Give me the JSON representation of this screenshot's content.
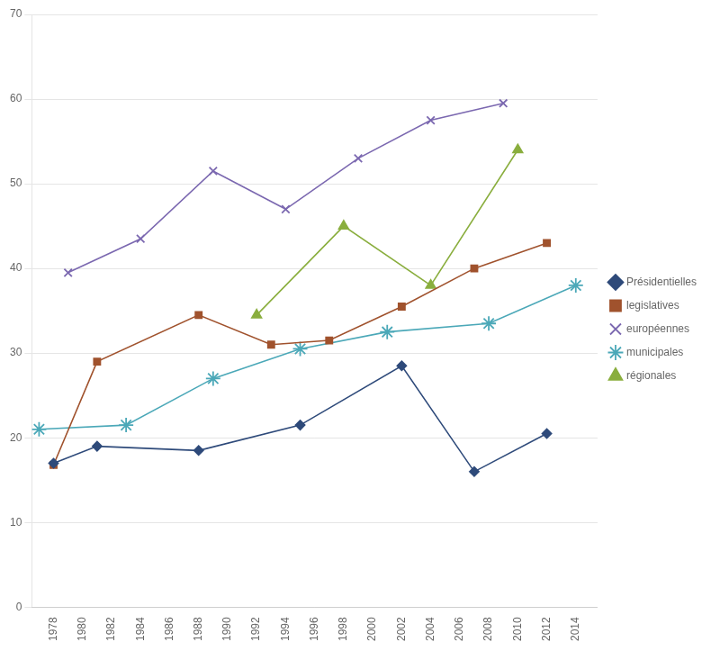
{
  "chart_data": {
    "type": "line",
    "series": [
      {
        "name": "Présidentielles",
        "color": "#2E4A7A",
        "marker": "diamond",
        "x": [
          1978,
          1981,
          1988,
          1995,
          2002,
          2007,
          2012
        ],
        "values": [
          17,
          19,
          18.5,
          21.5,
          28.5,
          16,
          20.5
        ]
      },
      {
        "name": "legislatives",
        "color": "#A0522D",
        "marker": "square",
        "x": [
          1978,
          1981,
          1988,
          1993,
          1997,
          2002,
          2007,
          2012
        ],
        "values": [
          16.8,
          29,
          34.5,
          31,
          31.5,
          35.5,
          40,
          43
        ]
      },
      {
        "name": "européennes",
        "color": "#7B68B0",
        "marker": "x",
        "x": [
          1979,
          1984,
          1989,
          1994,
          1999,
          2004,
          2009
        ],
        "values": [
          39.5,
          43.5,
          51.5,
          47,
          53,
          57.5,
          59.5
        ]
      },
      {
        "name": "municipales",
        "color": "#4BA8B8",
        "marker": "star",
        "x": [
          1977,
          1983,
          1989,
          1995,
          2001,
          2008,
          2014
        ],
        "values": [
          21,
          21.5,
          27,
          30.5,
          32.5,
          33.5,
          38
        ]
      },
      {
        "name": "régionales",
        "color": "#8AAE3E",
        "marker": "triangle",
        "x": [
          1992,
          1998,
          2004,
          2010
        ],
        "values": [
          34.5,
          45,
          38,
          54
        ]
      }
    ],
    "xlim": [
      1976.5,
      2015.5
    ],
    "xticks": [
      1978,
      1980,
      1982,
      1984,
      1986,
      1988,
      1990,
      1992,
      1994,
      1996,
      1998,
      2000,
      2002,
      2004,
      2006,
      2008,
      2010,
      2012,
      2014
    ],
    "ylim": [
      0,
      70
    ],
    "yticks": [
      0,
      10,
      20,
      30,
      40,
      50,
      60,
      70
    ],
    "grid": "y",
    "legend": "right"
  }
}
